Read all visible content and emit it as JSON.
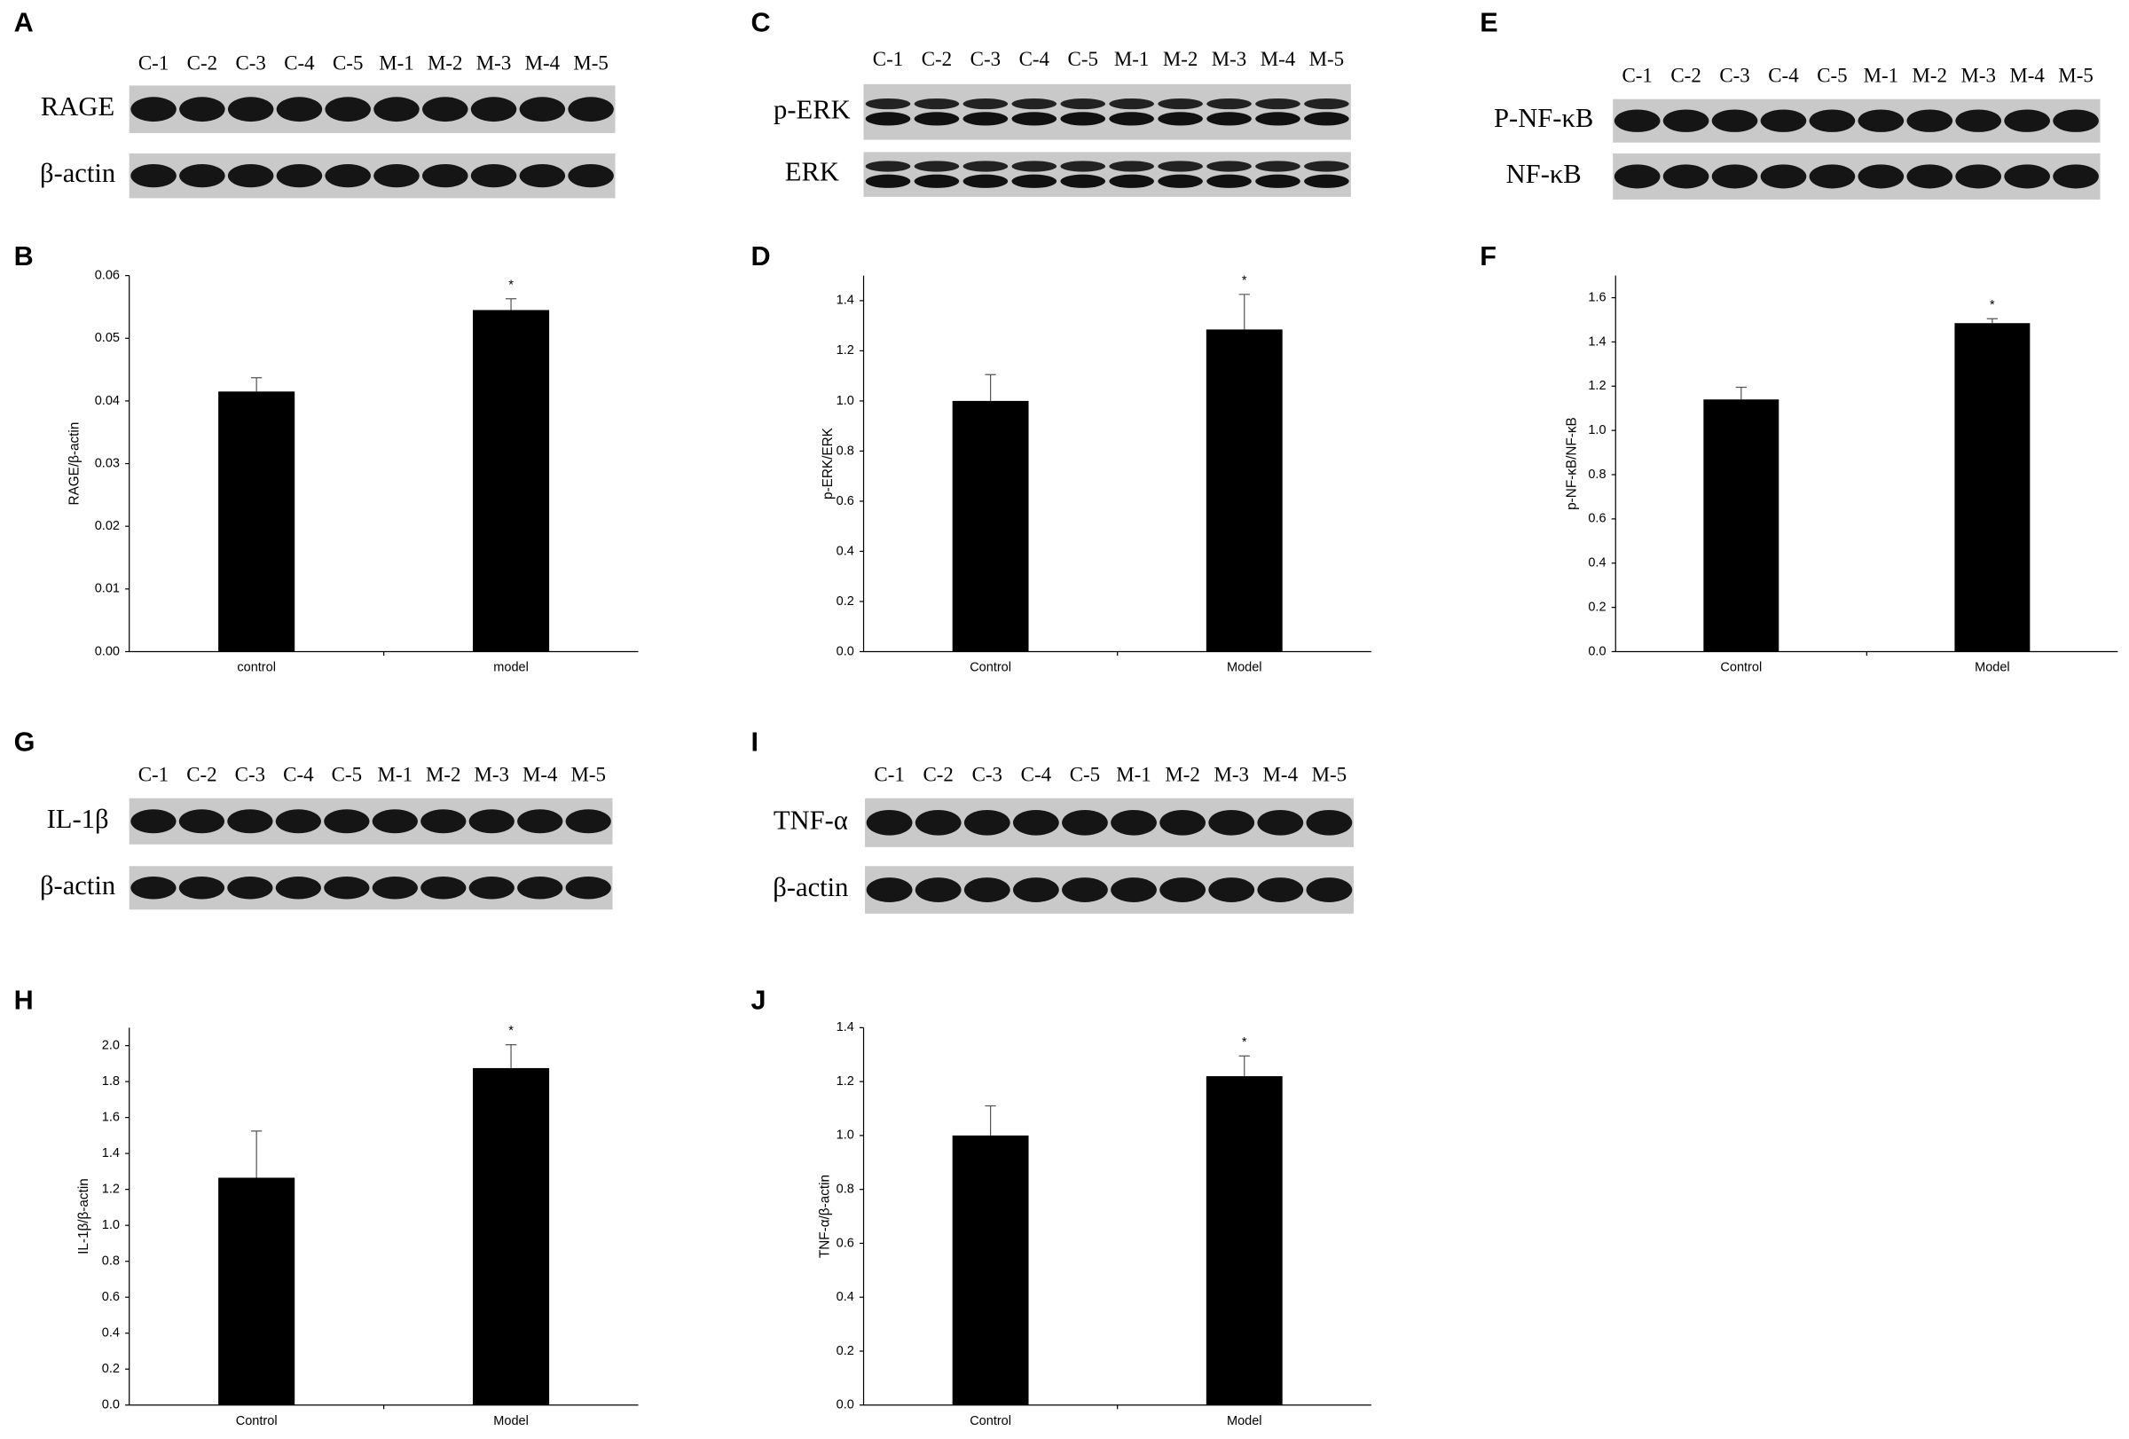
{
  "chart_data": [
    {
      "type": "bar",
      "panel_label": "B",
      "ylabel": "RAGE/β-actin",
      "categories": [
        "control",
        "model"
      ],
      "values": [
        0.0415,
        0.0545
      ],
      "errors": [
        0.0022,
        0.0018
      ],
      "significance": [
        null,
        "*"
      ],
      "color": "#000000",
      "ylim": [
        0,
        0.06
      ],
      "yticks": [
        {
          "value": 0,
          "label": "0.00"
        },
        0.01,
        0.02,
        0.03,
        0.04,
        0.05,
        0.06
      ]
    },
    {
      "type": "bar",
      "panel_label": "D",
      "ylabel": "p-ERK/ERK",
      "categories": [
        "Control",
        "Model"
      ],
      "values": [
        1.0,
        1.285
      ],
      "errors": [
        0.105,
        0.14
      ],
      "significance": [
        null,
        "*"
      ],
      "color": "#000000",
      "ylim": [
        0,
        1.5
      ],
      "yticks": [
        {
          "value": 0,
          "label": "0.0"
        },
        0.2,
        0.4,
        0.6,
        0.8,
        {
          "value": 1,
          "label": "1.0"
        },
        1.2,
        1.4
      ]
    },
    {
      "type": "bar",
      "panel_label": "F",
      "ylabel": "p-NF-κB/NF-κB",
      "categories": [
        "Control",
        "Model"
      ],
      "values": [
        1.14,
        1.485
      ],
      "errors": [
        0.055,
        0.02
      ],
      "significance": [
        null,
        "*"
      ],
      "color": "#000000",
      "ylim": [
        0,
        1.7
      ],
      "yticks": [
        {
          "value": 0,
          "label": "0.0"
        },
        0.2,
        0.4,
        0.6,
        0.8,
        {
          "value": 1,
          "label": "1.0"
        },
        1.2,
        1.4,
        1.6
      ]
    },
    {
      "type": "bar",
      "panel_label": "H",
      "ylabel": "IL-1β/β-actin",
      "categories": [
        "Control",
        "Model"
      ],
      "values": [
        1.265,
        1.875
      ],
      "errors": [
        0.26,
        0.13
      ],
      "significance": [
        null,
        "*"
      ],
      "color": "#000000",
      "ylim": [
        0,
        2.1
      ],
      "yticks": [
        {
          "value": 0,
          "label": "0.0"
        },
        0.2,
        0.4,
        0.6,
        0.8,
        {
          "value": 1,
          "label": "1.0"
        },
        1.2,
        1.4,
        1.6,
        1.8,
        {
          "value": 2,
          "label": "2.0"
        }
      ]
    },
    {
      "type": "bar",
      "panel_label": "J",
      "ylabel": "TNF-α/β-actin",
      "categories": [
        "Control",
        "Model"
      ],
      "values": [
        1.0,
        1.22
      ],
      "errors": [
        0.11,
        0.075
      ],
      "significance": [
        null,
        "*"
      ],
      "color": "#000000",
      "ylim": [
        0,
        1.4
      ],
      "yticks": [
        {
          "value": 0,
          "label": "0.0"
        },
        0.2,
        0.4,
        0.6,
        0.8,
        {
          "value": 1,
          "label": "1.0"
        },
        1.2,
        1.4
      ]
    }
  ],
  "blots": [
    {
      "panel_label": "A",
      "lanes": [
        "C-1",
        "C-2",
        "C-3",
        "C-4",
        "C-5",
        "M-1",
        "M-2",
        "M-3",
        "M-4",
        "M-5"
      ],
      "rows": [
        "RAGE",
        "β-actin"
      ]
    },
    {
      "panel_label": "C",
      "lanes": [
        "C-1",
        "C-2",
        "C-3",
        "C-4",
        "C-5",
        "M-1",
        "M-2",
        "M-3",
        "M-4",
        "M-5"
      ],
      "rows": [
        "p-ERK",
        "ERK"
      ]
    },
    {
      "panel_label": "E",
      "lanes": [
        "C-1",
        "C-2",
        "C-3",
        "C-4",
        "C-5",
        "M-1",
        "M-2",
        "M-3",
        "M-4",
        "M-5"
      ],
      "rows": [
        "P-NF-κB",
        "NF-κB"
      ]
    },
    {
      "panel_label": "G",
      "lanes": [
        "C-1",
        "C-2",
        "C-3",
        "C-4",
        "C-5",
        "M-1",
        "M-2",
        "M-3",
        "M-4",
        "M-5"
      ],
      "rows": [
        "IL-1β",
        "β-actin"
      ]
    },
    {
      "panel_label": "I",
      "lanes": [
        "C-1",
        "C-2",
        "C-3",
        "C-4",
        "C-5",
        "M-1",
        "M-2",
        "M-3",
        "M-4",
        "M-5"
      ],
      "rows": [
        "TNF-α",
        "β-actin"
      ]
    }
  ]
}
